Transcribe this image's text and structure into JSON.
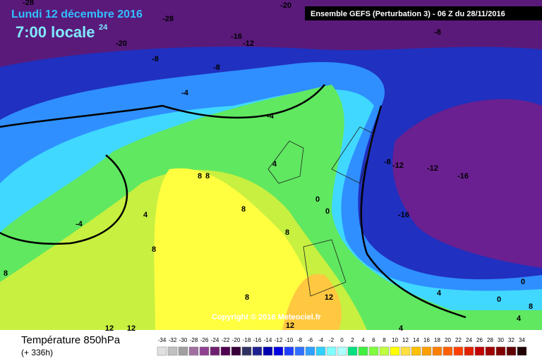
{
  "header": {
    "date": "Lundi 12 décembre 2016",
    "time": "7:00 locale",
    "time_sup": "24",
    "model": "Ensemble GEFS  (Perturbation 3)  - 06 Z du 28/11/2016"
  },
  "copyright": "Copyright © 2016 Meteociel.fr",
  "footer": {
    "parameter": "Température 850hPa",
    "lead": "(+ 336h)"
  },
  "contour_labels": [
    "-28",
    "-28",
    "-20",
    "-20",
    "-16",
    "-12",
    "-8",
    "-8",
    "-8",
    "-4",
    "-4",
    "4",
    "8",
    "8",
    "8",
    "4",
    "-4",
    "8",
    "8",
    "0",
    "0",
    "-8",
    "-12",
    "-12",
    "-16",
    "-16",
    "8",
    "8",
    "12",
    "4",
    "0",
    "0",
    "4",
    "8",
    "12",
    "12",
    "12",
    "4"
  ],
  "scale": {
    "values": [
      -34,
      -32,
      -30,
      -28,
      -26,
      -24,
      -22,
      -20,
      -18,
      -16,
      -14,
      -12,
      -10,
      -8,
      -6,
      -4,
      -2,
      0,
      2,
      4,
      6,
      8,
      10,
      12,
      14,
      16,
      18,
      20,
      22,
      24,
      26,
      28,
      30,
      32,
      34
    ],
    "colors": [
      "#e0e0e0",
      "#c0c0c0",
      "#a0a0a0",
      "#a070a0",
      "#904090",
      "#702070",
      "#500050",
      "#380038",
      "#303060",
      "#202090",
      "#0000b0",
      "#0000e0",
      "#2040ff",
      "#3070ff",
      "#30a0ff",
      "#30d0ff",
      "#80ffff",
      "#b0ffff",
      "#00e080",
      "#40f040",
      "#80ff40",
      "#c0ff40",
      "#ffff00",
      "#ffe040",
      "#ffc000",
      "#ffa000",
      "#ff8000",
      "#ff6000",
      "#ff4000",
      "#e02000",
      "#c00000",
      "#a00000",
      "#800000",
      "#600000",
      "#200000"
    ]
  }
}
